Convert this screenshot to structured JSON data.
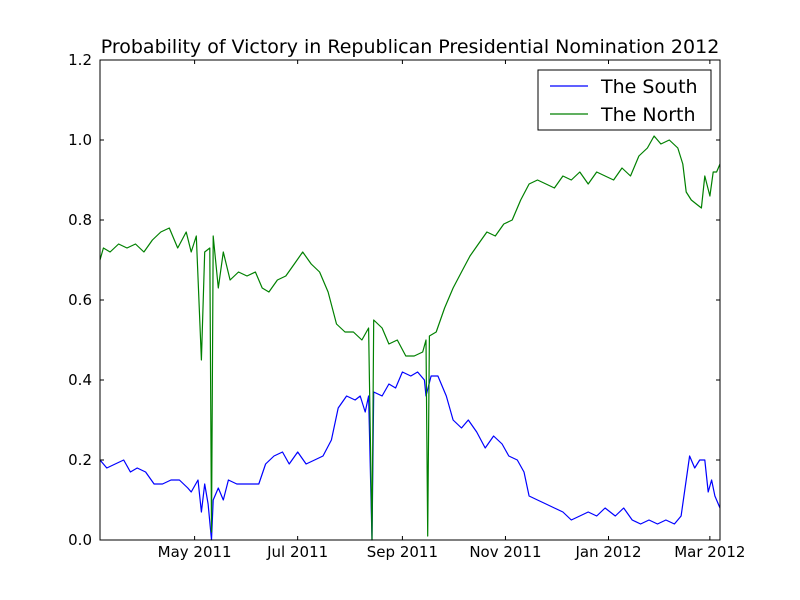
{
  "chart_data": {
    "type": "line",
    "title": "Probability of Victory in Republican Presidential Nomination 2012",
    "xlabel": "",
    "ylabel": "",
    "x_range": [
      "2011-03-06",
      "2012-03-07"
    ],
    "ylim": [
      0.0,
      1.2
    ],
    "y_ticks": [
      0.0,
      0.2,
      0.4,
      0.6,
      0.8,
      1.0,
      1.2
    ],
    "y_tick_labels": [
      "0.0",
      "0.2",
      "0.4",
      "0.6",
      "0.8",
      "1.0",
      "1.2"
    ],
    "x_ticks": [
      {
        "date": "2011-05-01",
        "label": "May 2011"
      },
      {
        "date": "2011-07-01",
        "label": "Jul 2011"
      },
      {
        "date": "2011-09-01",
        "label": "Sep 2011"
      },
      {
        "date": "2011-11-01",
        "label": "Nov 2011"
      },
      {
        "date": "2012-01-01",
        "label": "Jan 2012"
      },
      {
        "date": "2012-03-01",
        "label": "Mar 2012"
      }
    ],
    "grid": false,
    "legend_position": "top-right",
    "series": [
      {
        "name": "The South",
        "color": "#0000ff",
        "points": [
          [
            "2011-03-06",
            0.2
          ],
          [
            "2011-03-10",
            0.18
          ],
          [
            "2011-03-15",
            0.19
          ],
          [
            "2011-03-20",
            0.2
          ],
          [
            "2011-03-24",
            0.17
          ],
          [
            "2011-03-28",
            0.18
          ],
          [
            "2011-04-02",
            0.17
          ],
          [
            "2011-04-07",
            0.14
          ],
          [
            "2011-04-12",
            0.14
          ],
          [
            "2011-04-17",
            0.15
          ],
          [
            "2011-04-22",
            0.15
          ],
          [
            "2011-04-27",
            0.13
          ],
          [
            "2011-04-29",
            0.12
          ],
          [
            "2011-05-03",
            0.15
          ],
          [
            "2011-05-05",
            0.07
          ],
          [
            "2011-05-07",
            0.14
          ],
          [
            "2011-05-09",
            0.09
          ],
          [
            "2011-05-11",
            0.0
          ],
          [
            "2011-05-12",
            0.1
          ],
          [
            "2011-05-15",
            0.13
          ],
          [
            "2011-05-18",
            0.1
          ],
          [
            "2011-05-21",
            0.15
          ],
          [
            "2011-05-26",
            0.14
          ],
          [
            "2011-06-02",
            0.14
          ],
          [
            "2011-06-08",
            0.14
          ],
          [
            "2011-06-12",
            0.19
          ],
          [
            "2011-06-17",
            0.21
          ],
          [
            "2011-06-22",
            0.22
          ],
          [
            "2011-06-26",
            0.19
          ],
          [
            "2011-07-01",
            0.22
          ],
          [
            "2011-07-06",
            0.19
          ],
          [
            "2011-07-11",
            0.2
          ],
          [
            "2011-07-16",
            0.21
          ],
          [
            "2011-07-21",
            0.25
          ],
          [
            "2011-07-25",
            0.33
          ],
          [
            "2011-07-30",
            0.36
          ],
          [
            "2011-08-04",
            0.35
          ],
          [
            "2011-08-07",
            0.36
          ],
          [
            "2011-08-10",
            0.32
          ],
          [
            "2011-08-12",
            0.36
          ],
          [
            "2011-08-14",
            0.0
          ],
          [
            "2011-08-15",
            0.37
          ],
          [
            "2011-08-20",
            0.36
          ],
          [
            "2011-08-24",
            0.39
          ],
          [
            "2011-08-28",
            0.38
          ],
          [
            "2011-09-01",
            0.42
          ],
          [
            "2011-09-06",
            0.41
          ],
          [
            "2011-09-10",
            0.42
          ],
          [
            "2011-09-14",
            0.4
          ],
          [
            "2011-09-15",
            0.36
          ],
          [
            "2011-09-18",
            0.41
          ],
          [
            "2011-09-22",
            0.41
          ],
          [
            "2011-09-27",
            0.36
          ],
          [
            "2011-10-01",
            0.3
          ],
          [
            "2011-10-06",
            0.28
          ],
          [
            "2011-10-10",
            0.3
          ],
          [
            "2011-10-15",
            0.27
          ],
          [
            "2011-10-20",
            0.23
          ],
          [
            "2011-10-25",
            0.26
          ],
          [
            "2011-10-30",
            0.24
          ],
          [
            "2011-11-03",
            0.21
          ],
          [
            "2011-11-08",
            0.2
          ],
          [
            "2011-11-12",
            0.17
          ],
          [
            "2011-11-15",
            0.11
          ],
          [
            "2011-11-20",
            0.1
          ],
          [
            "2011-11-25",
            0.09
          ],
          [
            "2011-11-30",
            0.08
          ],
          [
            "2011-12-05",
            0.07
          ],
          [
            "2011-12-10",
            0.05
          ],
          [
            "2011-12-15",
            0.06
          ],
          [
            "2011-12-20",
            0.07
          ],
          [
            "2011-12-25",
            0.06
          ],
          [
            "2011-12-30",
            0.08
          ],
          [
            "2012-01-05",
            0.06
          ],
          [
            "2012-01-10",
            0.08
          ],
          [
            "2012-01-15",
            0.05
          ],
          [
            "2012-01-20",
            0.04
          ],
          [
            "2012-01-25",
            0.05
          ],
          [
            "2012-01-30",
            0.04
          ],
          [
            "2012-02-04",
            0.05
          ],
          [
            "2012-02-09",
            0.04
          ],
          [
            "2012-02-13",
            0.06
          ],
          [
            "2012-02-15",
            0.12
          ],
          [
            "2012-02-18",
            0.21
          ],
          [
            "2012-02-21",
            0.18
          ],
          [
            "2012-02-24",
            0.2
          ],
          [
            "2012-02-27",
            0.2
          ],
          [
            "2012-02-29",
            0.12
          ],
          [
            "2012-03-02",
            0.15
          ],
          [
            "2012-03-04",
            0.11
          ],
          [
            "2012-03-07",
            0.08
          ]
        ]
      },
      {
        "name": "The North",
        "color": "#008000",
        "points": [
          [
            "2011-03-06",
            0.7
          ],
          [
            "2011-03-08",
            0.73
          ],
          [
            "2011-03-12",
            0.72
          ],
          [
            "2011-03-17",
            0.74
          ],
          [
            "2011-03-22",
            0.73
          ],
          [
            "2011-03-27",
            0.74
          ],
          [
            "2011-04-01",
            0.72
          ],
          [
            "2011-04-06",
            0.75
          ],
          [
            "2011-04-11",
            0.77
          ],
          [
            "2011-04-16",
            0.78
          ],
          [
            "2011-04-21",
            0.73
          ],
          [
            "2011-04-26",
            0.77
          ],
          [
            "2011-04-29",
            0.72
          ],
          [
            "2011-05-02",
            0.76
          ],
          [
            "2011-05-05",
            0.45
          ],
          [
            "2011-05-07",
            0.72
          ],
          [
            "2011-05-10",
            0.73
          ],
          [
            "2011-05-11",
            0.02
          ],
          [
            "2011-05-12",
            0.76
          ],
          [
            "2011-05-15",
            0.63
          ],
          [
            "2011-05-18",
            0.72
          ],
          [
            "2011-05-22",
            0.65
          ],
          [
            "2011-05-27",
            0.67
          ],
          [
            "2011-06-01",
            0.66
          ],
          [
            "2011-06-06",
            0.67
          ],
          [
            "2011-06-10",
            0.63
          ],
          [
            "2011-06-14",
            0.62
          ],
          [
            "2011-06-19",
            0.65
          ],
          [
            "2011-06-24",
            0.66
          ],
          [
            "2011-06-29",
            0.69
          ],
          [
            "2011-07-04",
            0.72
          ],
          [
            "2011-07-09",
            0.69
          ],
          [
            "2011-07-14",
            0.67
          ],
          [
            "2011-07-19",
            0.62
          ],
          [
            "2011-07-24",
            0.54
          ],
          [
            "2011-07-29",
            0.52
          ],
          [
            "2011-08-03",
            0.52
          ],
          [
            "2011-08-08",
            0.5
          ],
          [
            "2011-08-12",
            0.53
          ],
          [
            "2011-08-14",
            0.0
          ],
          [
            "2011-08-15",
            0.55
          ],
          [
            "2011-08-20",
            0.53
          ],
          [
            "2011-08-24",
            0.49
          ],
          [
            "2011-08-29",
            0.5
          ],
          [
            "2011-09-03",
            0.46
          ],
          [
            "2011-09-08",
            0.46
          ],
          [
            "2011-09-13",
            0.47
          ],
          [
            "2011-09-15",
            0.5
          ],
          [
            "2011-09-16",
            0.01
          ],
          [
            "2011-09-17",
            0.51
          ],
          [
            "2011-09-21",
            0.52
          ],
          [
            "2011-09-26",
            0.58
          ],
          [
            "2011-10-01",
            0.63
          ],
          [
            "2011-10-06",
            0.67
          ],
          [
            "2011-10-11",
            0.71
          ],
          [
            "2011-10-16",
            0.74
          ],
          [
            "2011-10-21",
            0.77
          ],
          [
            "2011-10-26",
            0.76
          ],
          [
            "2011-10-31",
            0.79
          ],
          [
            "2011-11-05",
            0.8
          ],
          [
            "2011-11-10",
            0.85
          ],
          [
            "2011-11-15",
            0.89
          ],
          [
            "2011-11-20",
            0.9
          ],
          [
            "2011-11-25",
            0.89
          ],
          [
            "2011-11-30",
            0.88
          ],
          [
            "2011-12-05",
            0.91
          ],
          [
            "2011-12-10",
            0.9
          ],
          [
            "2011-12-15",
            0.92
          ],
          [
            "2011-12-20",
            0.89
          ],
          [
            "2011-12-25",
            0.92
          ],
          [
            "2011-12-30",
            0.91
          ],
          [
            "2012-01-04",
            0.9
          ],
          [
            "2012-01-09",
            0.93
          ],
          [
            "2012-01-14",
            0.91
          ],
          [
            "2012-01-19",
            0.96
          ],
          [
            "2012-01-24",
            0.98
          ],
          [
            "2012-01-28",
            1.01
          ],
          [
            "2012-02-01",
            0.99
          ],
          [
            "2012-02-06",
            1.0
          ],
          [
            "2012-02-11",
            0.98
          ],
          [
            "2012-02-14",
            0.94
          ],
          [
            "2012-02-16",
            0.87
          ],
          [
            "2012-02-19",
            0.85
          ],
          [
            "2012-02-22",
            0.84
          ],
          [
            "2012-02-25",
            0.83
          ],
          [
            "2012-02-27",
            0.91
          ],
          [
            "2012-03-01",
            0.86
          ],
          [
            "2012-03-03",
            0.92
          ],
          [
            "2012-03-05",
            0.92
          ],
          [
            "2012-03-07",
            0.94
          ]
        ]
      }
    ]
  }
}
